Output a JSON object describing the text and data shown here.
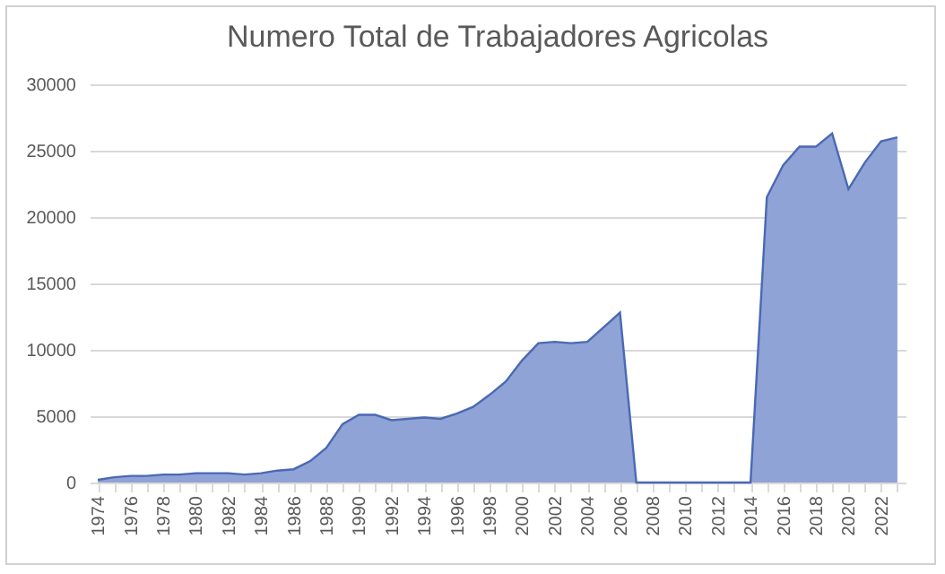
{
  "chart_data": {
    "type": "area",
    "title": "Numero Total de Trabajadores Agricolas",
    "categories": [
      "1974",
      null,
      "1976",
      null,
      "1978",
      null,
      "1980",
      null,
      "1982",
      null,
      "1984",
      null,
      "1986",
      null,
      "1988",
      null,
      "1990",
      null,
      "1992",
      null,
      "1994",
      null,
      "1996",
      null,
      "1998",
      null,
      "2000",
      null,
      "2002",
      null,
      "2004",
      null,
      "2006",
      null,
      "2008",
      null,
      "2010",
      null,
      "2012",
      null,
      "2014",
      null,
      "2016",
      null,
      "2018",
      null,
      "2020",
      null,
      "2022",
      null
    ],
    "series": [
      {
        "color": "#8fa3d6",
        "values": [
          200,
          400,
          500,
          500,
          600,
          600,
          700,
          700,
          700,
          600,
          700,
          900,
          1000,
          1600,
          2600,
          4400,
          5100,
          5100,
          4700,
          4800,
          4900,
          4800,
          5200,
          5700,
          6600,
          7600,
          9200,
          10500,
          10600,
          10500,
          10600,
          11700,
          12800,
          0,
          0,
          0,
          0,
          0,
          0,
          0,
          0,
          21500,
          23900,
          25300,
          25300,
          26300,
          22100,
          24100,
          25700,
          26000
        ]
      }
    ],
    "ylim": [
      0,
      30000
    ],
    "yticks": [
      0,
      5000,
      10000,
      15000,
      20000,
      25000,
      30000
    ],
    "grid": "y"
  }
}
